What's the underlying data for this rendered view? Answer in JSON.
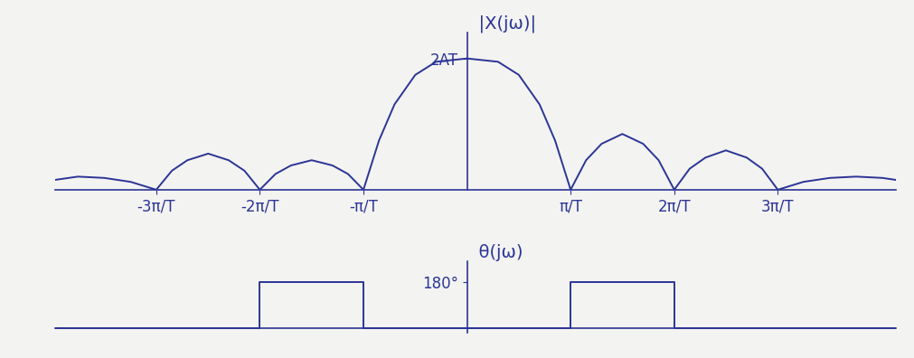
{
  "chart_data": [
    {
      "type": "line",
      "ylabel": "|X(jω)|",
      "color": "#2b3595",
      "grid": false,
      "x": [
        -12.5,
        -11.8,
        -11.0,
        -10.2,
        -9.4248,
        -8.95,
        -8.48,
        -7.85,
        -7.23,
        -6.75,
        -6.2832,
        -5.81,
        -5.34,
        -4.71,
        -4.08,
        -3.61,
        -3.1416,
        -2.67,
        -2.2,
        -1.57,
        -0.94,
        0.0,
        0.94,
        1.57,
        2.2,
        2.67,
        3.1416,
        3.61,
        4.08,
        4.71,
        5.34,
        5.81,
        6.2832,
        6.75,
        7.23,
        7.85,
        8.48,
        8.95,
        9.4248,
        10.2,
        11.0,
        11.8,
        12.6,
        13.0
      ],
      "values": [
        0.15,
        0.2,
        0.18,
        0.12,
        0.0,
        0.29,
        0.45,
        0.55,
        0.45,
        0.29,
        0.0,
        0.24,
        0.37,
        0.45,
        0.37,
        0.24,
        0.0,
        0.75,
        1.3,
        1.75,
        1.95,
        2.0,
        1.95,
        1.75,
        1.3,
        0.75,
        0.0,
        0.45,
        0.7,
        0.85,
        0.7,
        0.45,
        0.0,
        0.32,
        0.49,
        0.6,
        0.49,
        0.32,
        0.0,
        0.12,
        0.18,
        0.2,
        0.18,
        0.15
      ],
      "xlim": [
        -12.5,
        13.0
      ],
      "xticks": [
        {
          "value": -9.4248,
          "label": "-3π/T"
        },
        {
          "value": -6.2832,
          "label": "-2π/T"
        },
        {
          "value": -3.1416,
          "label": "-π/T"
        },
        {
          "value": 3.1416,
          "label": "π/T"
        },
        {
          "value": 6.2832,
          "label": "2π/T"
        },
        {
          "value": 9.4248,
          "label": "3π/T"
        }
      ],
      "ylim": [
        0,
        2.4
      ],
      "yticks": [
        {
          "value": 2,
          "label": "2AT"
        }
      ]
    },
    {
      "type": "line",
      "ylabel": "θ(jω)",
      "color": "#2b3595",
      "grid": false,
      "tick_labels": "y",
      "x": [
        -12.5,
        -6.2832,
        -6.2832,
        -3.1416,
        -3.1416,
        3.1416,
        3.1416,
        6.2832,
        6.2832,
        13.0
      ],
      "values": [
        0,
        0,
        180,
        180,
        0,
        0,
        180,
        180,
        0,
        0
      ],
      "xlim": [
        -12.5,
        13.0
      ],
      "ylim": [
        -20,
        260
      ],
      "yticks": [
        {
          "value": 180,
          "label": "180°"
        }
      ]
    }
  ]
}
